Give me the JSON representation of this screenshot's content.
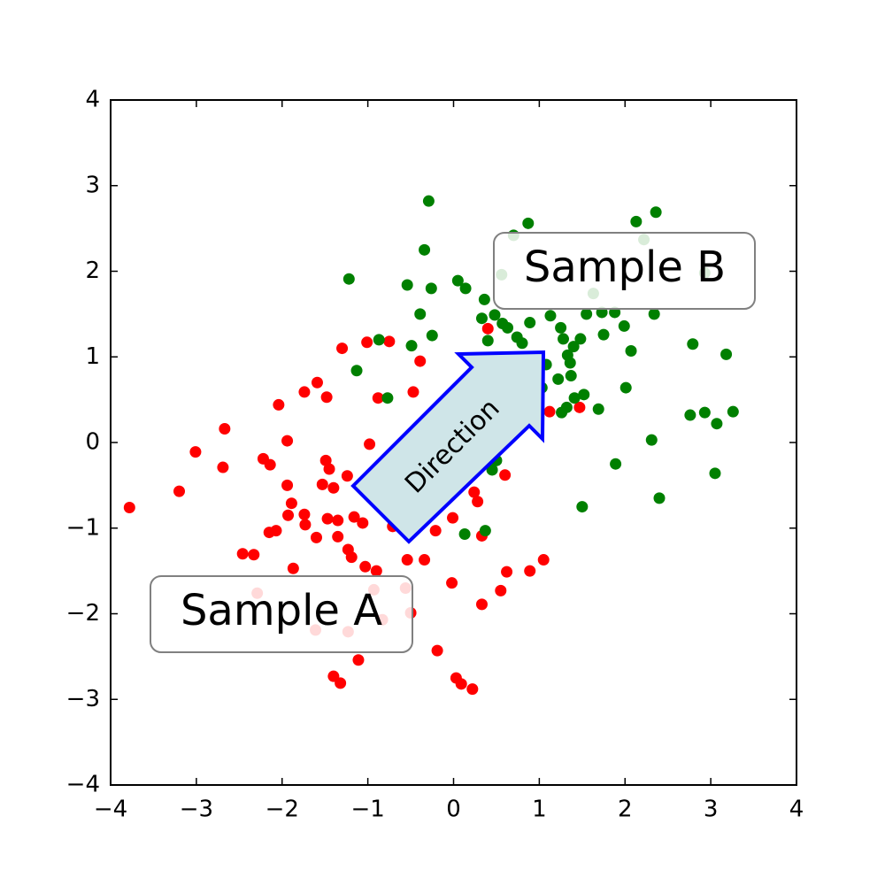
{
  "chart_data": {
    "type": "scatter",
    "annotation": "Direction",
    "xlim": [
      -4,
      4
    ],
    "ylim": [
      -4,
      4
    ],
    "xticks": [
      {
        "value": -4,
        "label": "−4"
      },
      {
        "value": -3,
        "label": "−3"
      },
      {
        "value": -2,
        "label": "−2"
      },
      {
        "value": -1,
        "label": "−1"
      },
      0,
      1,
      2,
      3,
      4
    ],
    "yticks": [
      {
        "value": -4,
        "label": "−4"
      },
      {
        "value": -3,
        "label": "−3"
      },
      {
        "value": -2,
        "label": "−2"
      },
      {
        "value": -1,
        "label": "−1"
      },
      0,
      1,
      2,
      3,
      4
    ],
    "series": [
      {
        "name": "Sample A",
        "color": "#ff0000",
        "x": [
          -3.78,
          -3.2,
          -3.01,
          -2.69,
          -2.67,
          -2.46,
          -2.33,
          -2.22,
          -2.14,
          -2.15,
          -2.07,
          -2.04,
          -1.94,
          -1.94,
          -1.89,
          -1.93,
          -1.87,
          -1.74,
          -1.73,
          -1.74,
          -1.6,
          -1.59,
          -1.49,
          -1.48,
          -1.53,
          -1.47,
          -1.45,
          -1.4,
          -1.35,
          -1.35,
          -1.3,
          -1.24,
          -1.23,
          -1.19,
          -1.16,
          -1.11,
          -1.06,
          -1.03,
          -1.01,
          -0.98,
          -0.9,
          -0.88,
          -0.75,
          -1.4,
          -1.32,
          -0.83,
          -0.93,
          -0.71,
          -0.54,
          -0.5,
          -0.47,
          -0.39,
          -0.34,
          -0.21,
          -0.19,
          -0.02,
          -0.01,
          0.03,
          0.09,
          0.22,
          0.24,
          0.28,
          0.33,
          0.33,
          0.4,
          0.55,
          0.6,
          0.62,
          0.89,
          1.05,
          1.12,
          1.47,
          -2.29,
          -1.61,
          -1.23,
          -0.56
        ],
        "y": [
          -0.76,
          -0.57,
          -0.11,
          -0.29,
          0.16,
          -1.3,
          -1.31,
          -0.19,
          -0.26,
          -1.05,
          -1.03,
          0.44,
          0.02,
          -0.5,
          -0.71,
          -0.85,
          -1.47,
          -0.84,
          -0.96,
          0.59,
          -1.11,
          0.7,
          -0.21,
          0.53,
          -0.49,
          -0.89,
          -0.31,
          -0.53,
          -0.91,
          -1.1,
          1.1,
          -0.39,
          -1.25,
          -1.34,
          -0.87,
          -2.54,
          -0.94,
          -1.45,
          1.17,
          -0.02,
          -1.5,
          0.52,
          1.18,
          -2.73,
          -2.81,
          -2.07,
          -1.72,
          -0.98,
          -1.37,
          -1.99,
          0.59,
          0.95,
          -1.37,
          -1.03,
          -2.43,
          -1.64,
          -0.88,
          -2.75,
          -2.82,
          -2.88,
          -0.58,
          -0.69,
          -1.89,
          -1.09,
          1.33,
          -1.73,
          -0.38,
          -1.51,
          -1.5,
          -1.37,
          0.36,
          0.41,
          -1.76,
          -2.19,
          -2.21,
          -1.7
        ]
      },
      {
        "name": "Sample B",
        "color": "#008000",
        "x": [
          -0.29,
          -0.34,
          -1.22,
          -0.54,
          -0.26,
          -0.39,
          -0.25,
          -0.49,
          -0.87,
          -1.13,
          -0.77,
          0.05,
          0.14,
          0.36,
          0.33,
          0.48,
          0.4,
          0.57,
          0.63,
          0.74,
          0.8,
          0.89,
          0.87,
          1.13,
          1.25,
          1.28,
          1.33,
          1.36,
          1.4,
          1.48,
          1.37,
          1.22,
          1.26,
          1.32,
          1.41,
          1.52,
          1.55,
          1.73,
          1.75,
          1.88,
          1.99,
          2.07,
          2.01,
          1.69,
          1.5,
          1.89,
          2.13,
          2.36,
          2.34,
          2.31,
          2.4,
          2.79,
          2.76,
          2.93,
          3.07,
          3.05,
          3.18,
          3.26,
          0.13,
          0.37,
          0.45,
          0.5,
          1.08,
          1.03,
          0.7,
          2.22,
          2.93,
          1.63,
          0.56
        ],
        "y": [
          2.82,
          2.25,
          1.91,
          1.84,
          1.8,
          1.5,
          1.25,
          1.13,
          1.2,
          0.84,
          0.52,
          1.89,
          1.8,
          1.67,
          1.45,
          1.49,
          1.19,
          1.39,
          1.34,
          1.23,
          1.16,
          1.4,
          2.56,
          1.48,
          1.34,
          1.21,
          1.02,
          0.93,
          1.12,
          1.21,
          0.78,
          0.74,
          0.35,
          0.41,
          0.52,
          0.56,
          1.5,
          1.52,
          1.26,
          1.52,
          1.36,
          1.07,
          0.64,
          0.39,
          -0.75,
          -0.25,
          2.58,
          2.69,
          1.5,
          0.03,
          -0.65,
          1.15,
          0.32,
          0.35,
          0.22,
          -0.36,
          1.03,
          0.36,
          -1.07,
          -1.03,
          -0.32,
          -0.21,
          0.91,
          0.64,
          2.42,
          2.37,
          1.98,
          1.74,
          1.96
        ]
      }
    ]
  }
}
